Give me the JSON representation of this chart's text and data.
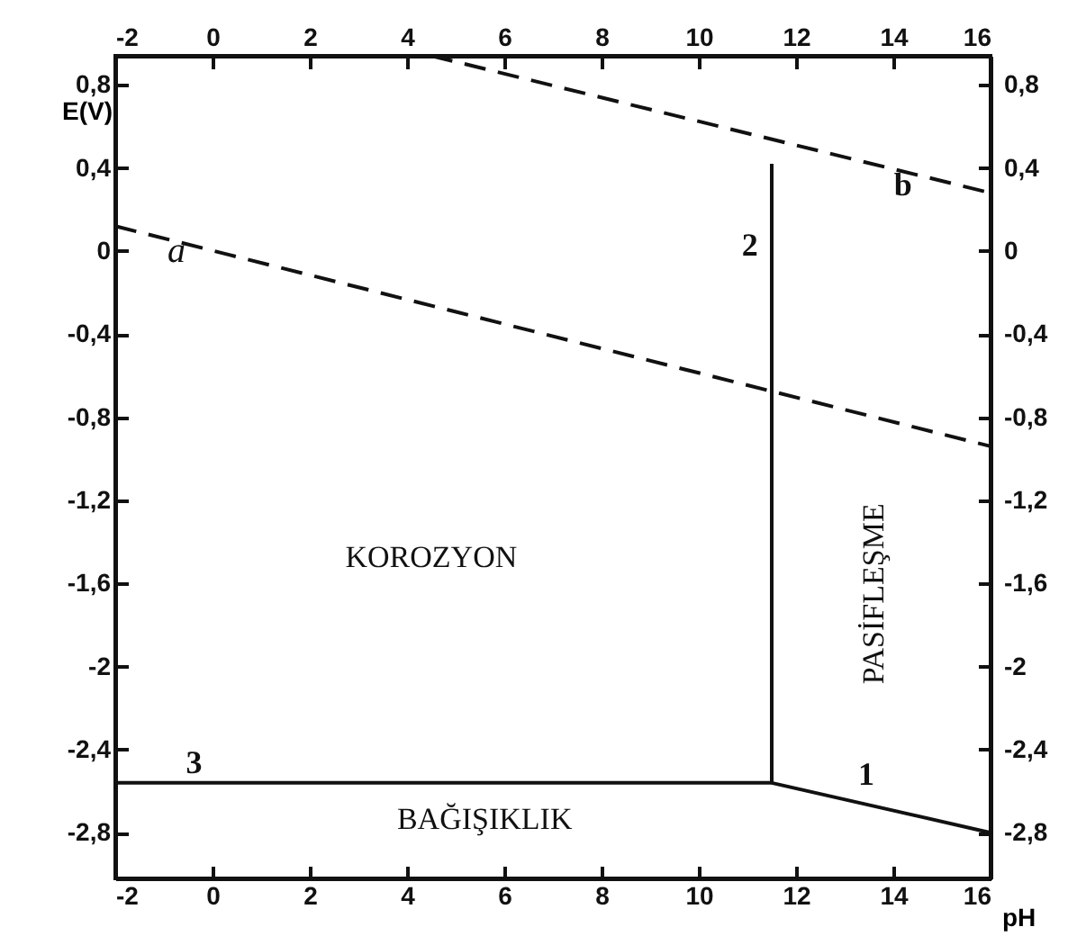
{
  "chart_data": {
    "type": "line",
    "xlabel": "pH",
    "ylabel": "E(V)",
    "xlim": [
      -2,
      16
    ],
    "ylim": [
      -3.02,
      0.94
    ],
    "xticks": [
      -2,
      0,
      2,
      4,
      6,
      8,
      10,
      12,
      14,
      16
    ],
    "yticks": [
      {
        "value": 0.8,
        "label": "0,8"
      },
      {
        "value": 0.4,
        "label": "0,4"
      },
      0,
      {
        "value": -0.4,
        "label": "-0,4"
      },
      {
        "value": -0.8,
        "label": "-0,8"
      },
      {
        "value": -1.2,
        "label": "-1,2"
      },
      {
        "value": -1.6,
        "label": "-1,6"
      },
      -2,
      {
        "value": -2.4,
        "label": "-2,4"
      },
      {
        "value": -2.8,
        "label": "-2,8"
      }
    ],
    "x2lim": [
      -2,
      16
    ],
    "x2ticks": [
      -2,
      0,
      2,
      4,
      6,
      8,
      10,
      12,
      14,
      16
    ],
    "y2lim": [
      -3.02,
      0.94
    ],
    "y2ticks": [
      {
        "value": 0.8,
        "label": "0,8"
      },
      {
        "value": 0.4,
        "label": "0,4"
      },
      0,
      {
        "value": -0.4,
        "label": "-0,4"
      },
      {
        "value": -0.8,
        "label": "-0,8"
      },
      {
        "value": -1.2,
        "label": "-1,2"
      },
      {
        "value": -1.6,
        "label": "-1,6"
      },
      -2,
      {
        "value": -2.4,
        "label": "-2,4"
      },
      {
        "value": -2.8,
        "label": "-2,8"
      }
    ],
    "grid": false,
    "series": [
      {
        "color": "#111111",
        "line_style": "dashed",
        "x": [
          -2,
          16
        ],
        "values": [
          0.12,
          -0.94
        ]
      },
      {
        "color": "#111111",
        "line_style": "dashed",
        "x": [
          4.5,
          16
        ],
        "values": [
          0.94,
          0.28
        ]
      },
      {
        "color": "#111111",
        "line_style": "solid",
        "x": [
          11.5,
          16
        ],
        "values": [
          -2.56,
          -2.8
        ]
      },
      {
        "color": "#111111",
        "line_style": "solid",
        "x": [
          -2,
          11.5,
          11.5
        ],
        "values": [
          -2.56,
          -2.56,
          0.42
        ]
      }
    ],
    "annotations": [
      {
        "text": "a",
        "x": -0.74,
        "y": 0.0
      },
      "b",
      "1",
      "2",
      "3",
      "KOROZYON",
      "BAĞIŞIKLIK",
      "PASİFLEŞME"
    ]
  }
}
